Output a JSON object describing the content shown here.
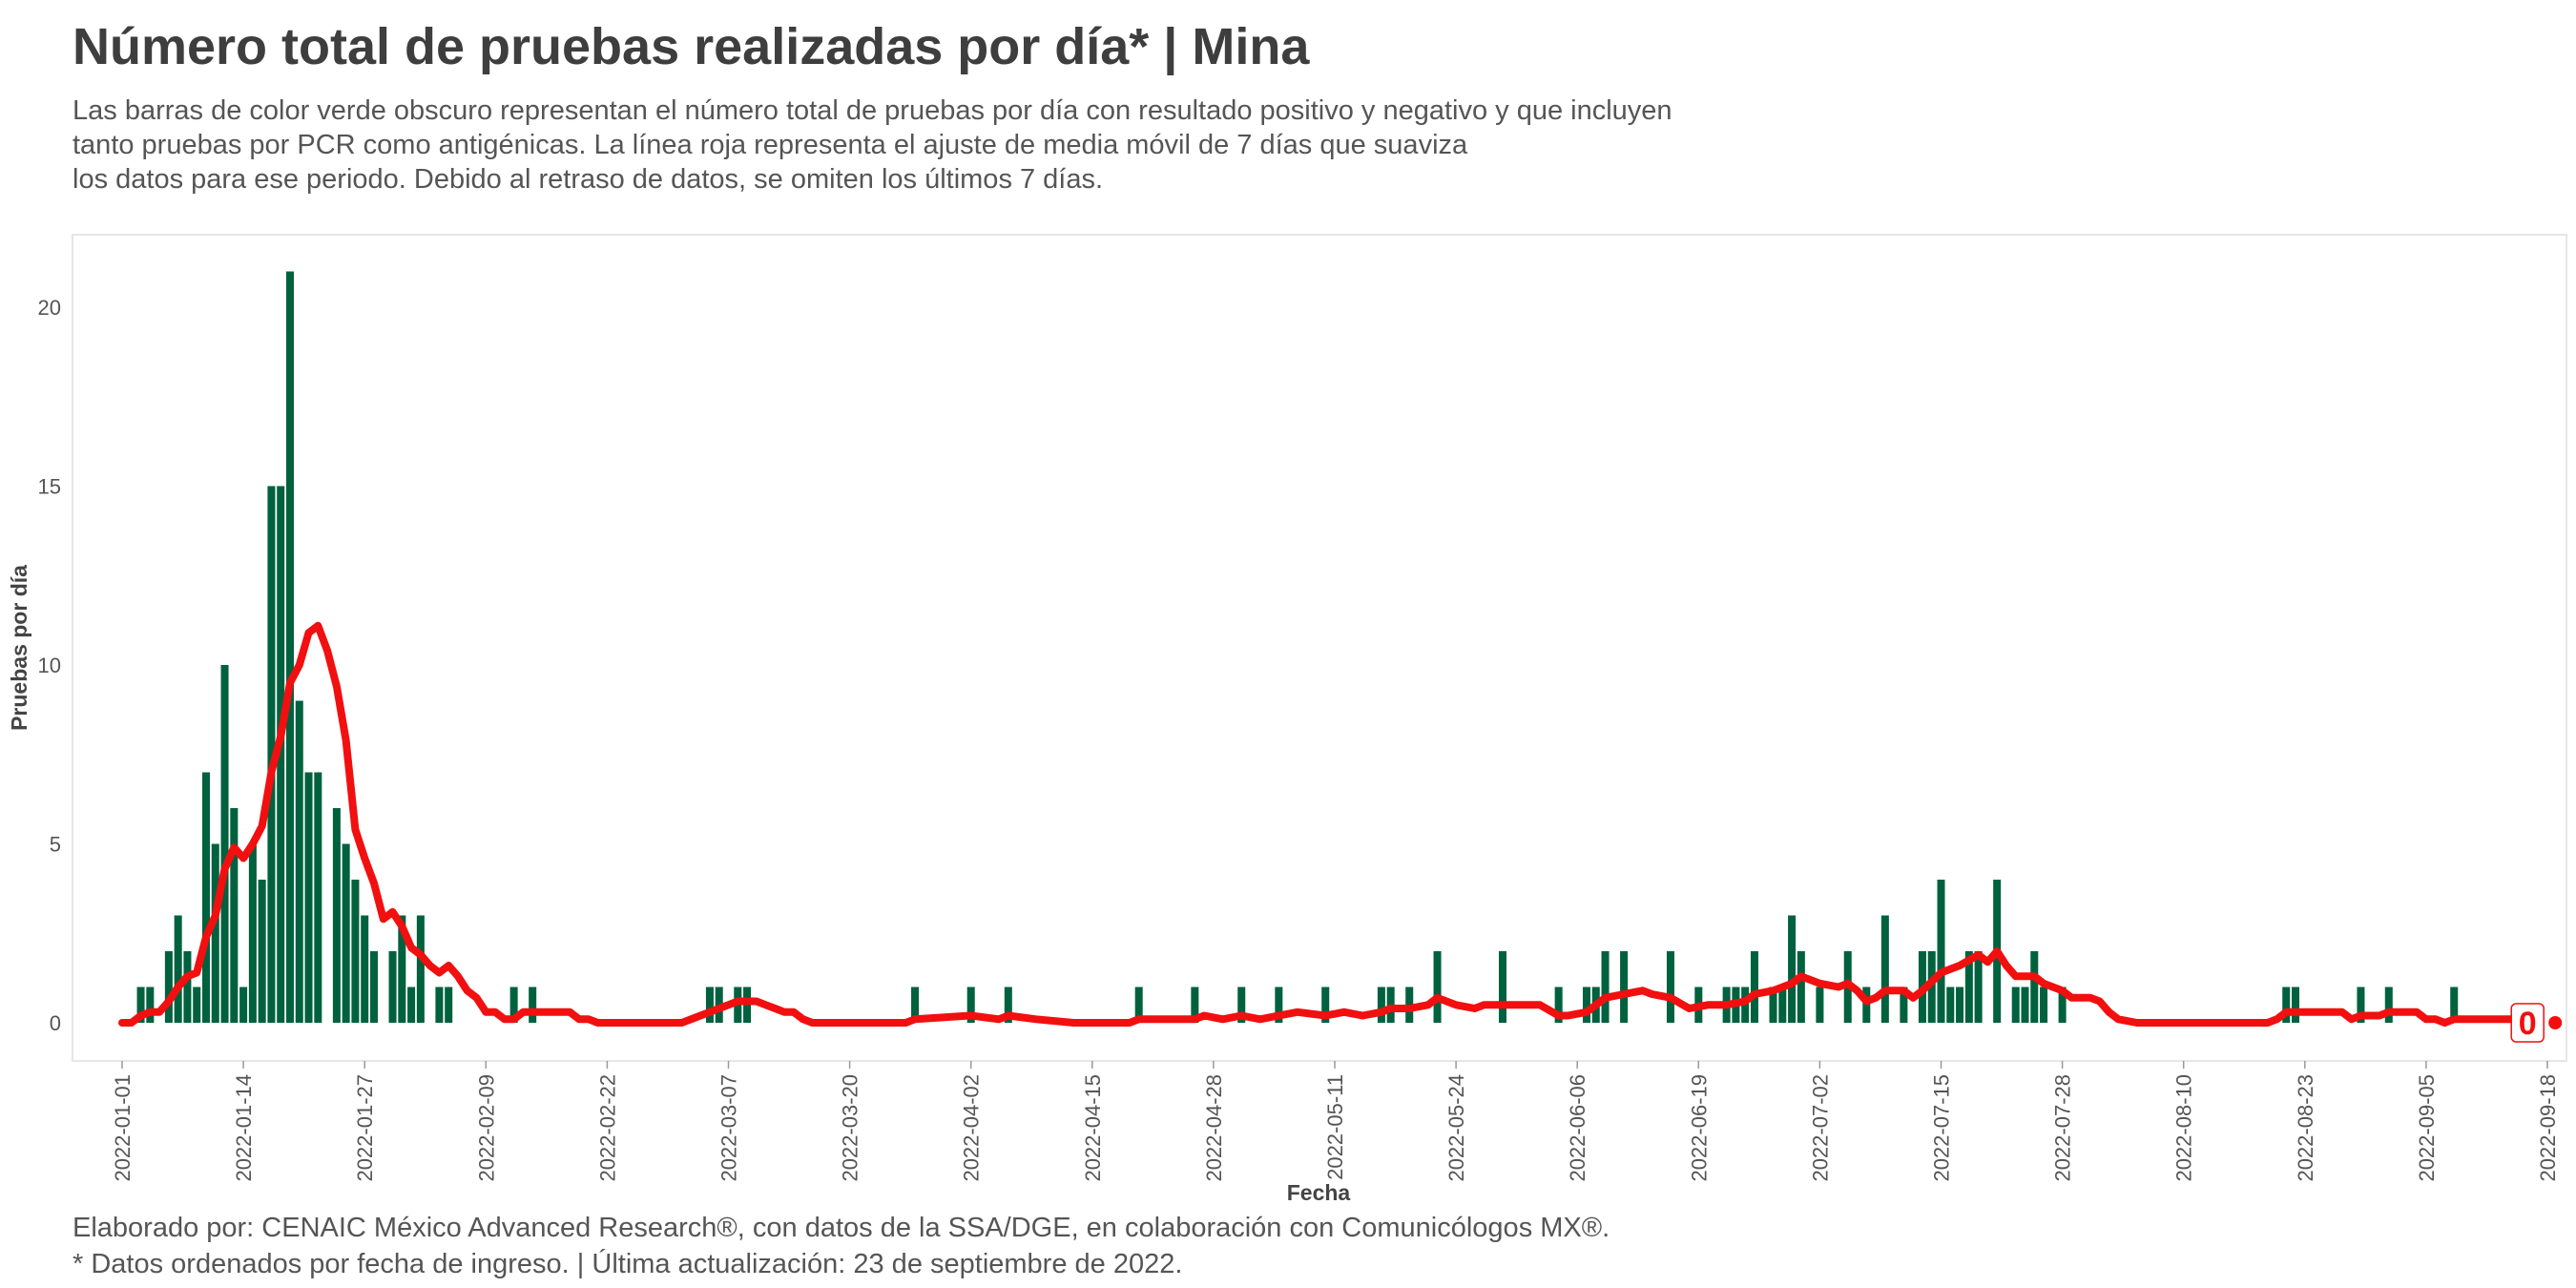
{
  "header": {
    "title": "Número total de pruebas realizadas por día* | Mina",
    "subtitle_lines": [
      "Las barras de color verde obscuro representan el número total de pruebas por día con resultado positivo y negativo y que incluyen",
      "tanto pruebas por PCR como antigénicas. La línea roja representa el ajuste de media móvil de 7 días que suaviza",
      "los datos para ese periodo. Debido al retraso de datos, se omiten los últimos 7 días."
    ]
  },
  "footer": {
    "lines": [
      "Elaborado por: CENAIC México Advanced Research®, con datos de la SSA/DGE, en colaboración con Comunicólogos MX®.",
      "* Datos ordenados por fecha de ingreso. | Última actualización: 23 de septiembre de 2022."
    ]
  },
  "chart_data": {
    "type": "bar",
    "xlabel": "Fecha",
    "ylabel": "Pruebas por día",
    "ylim": [
      0,
      22
    ],
    "yticks": [
      0,
      5,
      10,
      15,
      20
    ],
    "x_start": "2022-01-01",
    "x_end": "2022-09-18",
    "xticks": [
      "2022-01-01",
      "2022-01-14",
      "2022-01-27",
      "2022-02-09",
      "2022-02-22",
      "2022-03-07",
      "2022-03-20",
      "2022-04-02",
      "2022-04-15",
      "2022-04-28",
      "2022-05-11",
      "2022-05-24",
      "2022-06-06",
      "2022-06-19",
      "2022-07-02",
      "2022-07-15",
      "2022-07-28",
      "2022-08-10",
      "2022-08-23",
      "2022-09-05",
      "2022-09-18"
    ],
    "bar_color": "#00613f",
    "line_color": "#f20f0f",
    "series": [
      {
        "name": "Pruebas por día",
        "points": [
          [
            "2022-01-03",
            1
          ],
          [
            "2022-01-04",
            1
          ],
          [
            "2022-01-06",
            2
          ],
          [
            "2022-01-07",
            3
          ],
          [
            "2022-01-08",
            2
          ],
          [
            "2022-01-09",
            1
          ],
          [
            "2022-01-10",
            7
          ],
          [
            "2022-01-11",
            5
          ],
          [
            "2022-01-12",
            10
          ],
          [
            "2022-01-13",
            6
          ],
          [
            "2022-01-14",
            1
          ],
          [
            "2022-01-15",
            5
          ],
          [
            "2022-01-16",
            4
          ],
          [
            "2022-01-17",
            15
          ],
          [
            "2022-01-18",
            15
          ],
          [
            "2022-01-19",
            21
          ],
          [
            "2022-01-20",
            9
          ],
          [
            "2022-01-21",
            7
          ],
          [
            "2022-01-22",
            7
          ],
          [
            "2022-01-24",
            6
          ],
          [
            "2022-01-25",
            5
          ],
          [
            "2022-01-26",
            4
          ],
          [
            "2022-01-27",
            3
          ],
          [
            "2022-01-28",
            2
          ],
          [
            "2022-01-30",
            2
          ],
          [
            "2022-01-31",
            3
          ],
          [
            "2022-02-01",
            1
          ],
          [
            "2022-02-02",
            3
          ],
          [
            "2022-02-04",
            1
          ],
          [
            "2022-02-05",
            1
          ],
          [
            "2022-02-12",
            1
          ],
          [
            "2022-02-14",
            1
          ],
          [
            "2022-03-05",
            1
          ],
          [
            "2022-03-06",
            1
          ],
          [
            "2022-03-08",
            1
          ],
          [
            "2022-03-09",
            1
          ],
          [
            "2022-03-27",
            1
          ],
          [
            "2022-04-02",
            1
          ],
          [
            "2022-04-06",
            1
          ],
          [
            "2022-04-20",
            1
          ],
          [
            "2022-04-26",
            1
          ],
          [
            "2022-05-01",
            1
          ],
          [
            "2022-05-05",
            1
          ],
          [
            "2022-05-10",
            1
          ],
          [
            "2022-05-16",
            1
          ],
          [
            "2022-05-17",
            1
          ],
          [
            "2022-05-19",
            1
          ],
          [
            "2022-05-22",
            2
          ],
          [
            "2022-05-29",
            2
          ],
          [
            "2022-06-04",
            1
          ],
          [
            "2022-06-07",
            1
          ],
          [
            "2022-06-08",
            1
          ],
          [
            "2022-06-09",
            2
          ],
          [
            "2022-06-11",
            2
          ],
          [
            "2022-06-16",
            2
          ],
          [
            "2022-06-19",
            1
          ],
          [
            "2022-06-22",
            1
          ],
          [
            "2022-06-23",
            1
          ],
          [
            "2022-06-24",
            1
          ],
          [
            "2022-06-25",
            2
          ],
          [
            "2022-06-27",
            1
          ],
          [
            "2022-06-28",
            1
          ],
          [
            "2022-06-29",
            3
          ],
          [
            "2022-06-30",
            2
          ],
          [
            "2022-07-02",
            1
          ],
          [
            "2022-07-05",
            2
          ],
          [
            "2022-07-07",
            1
          ],
          [
            "2022-07-09",
            3
          ],
          [
            "2022-07-11",
            1
          ],
          [
            "2022-07-13",
            2
          ],
          [
            "2022-07-14",
            2
          ],
          [
            "2022-07-15",
            4
          ],
          [
            "2022-07-16",
            1
          ],
          [
            "2022-07-17",
            1
          ],
          [
            "2022-07-18",
            2
          ],
          [
            "2022-07-19",
            2
          ],
          [
            "2022-07-21",
            4
          ],
          [
            "2022-07-23",
            1
          ],
          [
            "2022-07-24",
            1
          ],
          [
            "2022-07-25",
            2
          ],
          [
            "2022-07-26",
            1
          ],
          [
            "2022-07-28",
            1
          ],
          [
            "2022-08-21",
            1
          ],
          [
            "2022-08-22",
            1
          ],
          [
            "2022-08-29",
            1
          ],
          [
            "2022-09-01",
            1
          ],
          [
            "2022-09-08",
            1
          ]
        ]
      },
      {
        "name": "Media móvil de 7 días",
        "points": [
          [
            "2022-01-01",
            0
          ],
          [
            "2022-01-02",
            0
          ],
          [
            "2022-01-03",
            0.2
          ],
          [
            "2022-01-04",
            0.3
          ],
          [
            "2022-01-05",
            0.3
          ],
          [
            "2022-01-06",
            0.6
          ],
          [
            "2022-01-07",
            1.0
          ],
          [
            "2022-01-08",
            1.3
          ],
          [
            "2022-01-09",
            1.4
          ],
          [
            "2022-01-10",
            2.4
          ],
          [
            "2022-01-11",
            3.0
          ],
          [
            "2022-01-12",
            4.3
          ],
          [
            "2022-01-13",
            4.9
          ],
          [
            "2022-01-14",
            4.6
          ],
          [
            "2022-01-15",
            5.0
          ],
          [
            "2022-01-16",
            5.5
          ],
          [
            "2022-01-17",
            7.0
          ],
          [
            "2022-01-18",
            8.0
          ],
          [
            "2022-01-19",
            9.5
          ],
          [
            "2022-01-20",
            10.0
          ],
          [
            "2022-01-21",
            10.9
          ],
          [
            "2022-01-22",
            11.1
          ],
          [
            "2022-01-23",
            10.4
          ],
          [
            "2022-01-24",
            9.4
          ],
          [
            "2022-01-25",
            7.9
          ],
          [
            "2022-01-26",
            5.4
          ],
          [
            "2022-01-27",
            4.6
          ],
          [
            "2022-01-28",
            3.9
          ],
          [
            "2022-01-29",
            2.9
          ],
          [
            "2022-01-30",
            3.1
          ],
          [
            "2022-01-31",
            2.7
          ],
          [
            "2022-02-01",
            2.1
          ],
          [
            "2022-02-02",
            1.9
          ],
          [
            "2022-02-03",
            1.6
          ],
          [
            "2022-02-04",
            1.4
          ],
          [
            "2022-02-05",
            1.6
          ],
          [
            "2022-02-06",
            1.3
          ],
          [
            "2022-02-07",
            0.9
          ],
          [
            "2022-02-08",
            0.7
          ],
          [
            "2022-02-09",
            0.3
          ],
          [
            "2022-02-10",
            0.3
          ],
          [
            "2022-02-11",
            0.1
          ],
          [
            "2022-02-12",
            0.1
          ],
          [
            "2022-02-13",
            0.3
          ],
          [
            "2022-02-14",
            0.3
          ],
          [
            "2022-02-15",
            0.3
          ],
          [
            "2022-02-16",
            0.3
          ],
          [
            "2022-02-17",
            0.3
          ],
          [
            "2022-02-18",
            0.3
          ],
          [
            "2022-02-19",
            0.1
          ],
          [
            "2022-02-20",
            0.1
          ],
          [
            "2022-02-21",
            0
          ],
          [
            "2022-03-02",
            0
          ],
          [
            "2022-03-03",
            0.1
          ],
          [
            "2022-03-04",
            0.2
          ],
          [
            "2022-03-05",
            0.3
          ],
          [
            "2022-03-06",
            0.4
          ],
          [
            "2022-03-07",
            0.5
          ],
          [
            "2022-03-08",
            0.6
          ],
          [
            "2022-03-09",
            0.6
          ],
          [
            "2022-03-10",
            0.6
          ],
          [
            "2022-03-11",
            0.5
          ],
          [
            "2022-03-12",
            0.4
          ],
          [
            "2022-03-13",
            0.3
          ],
          [
            "2022-03-14",
            0.3
          ],
          [
            "2022-03-15",
            0.1
          ],
          [
            "2022-03-16",
            0
          ],
          [
            "2022-03-26",
            0
          ],
          [
            "2022-03-27",
            0.1
          ],
          [
            "2022-04-02",
            0.2
          ],
          [
            "2022-04-05",
            0.1
          ],
          [
            "2022-04-06",
            0.2
          ],
          [
            "2022-04-09",
            0.1
          ],
          [
            "2022-04-13",
            0
          ],
          [
            "2022-04-19",
            0
          ],
          [
            "2022-04-20",
            0.1
          ],
          [
            "2022-04-26",
            0.1
          ],
          [
            "2022-04-27",
            0.2
          ],
          [
            "2022-04-29",
            0.1
          ],
          [
            "2022-05-01",
            0.2
          ],
          [
            "2022-05-03",
            0.1
          ],
          [
            "2022-05-05",
            0.2
          ],
          [
            "2022-05-07",
            0.3
          ],
          [
            "2022-05-10",
            0.2
          ],
          [
            "2022-05-12",
            0.3
          ],
          [
            "2022-05-14",
            0.2
          ],
          [
            "2022-05-16",
            0.3
          ],
          [
            "2022-05-17",
            0.4
          ],
          [
            "2022-05-19",
            0.4
          ],
          [
            "2022-05-21",
            0.5
          ],
          [
            "2022-05-22",
            0.7
          ],
          [
            "2022-05-24",
            0.5
          ],
          [
            "2022-05-26",
            0.4
          ],
          [
            "2022-05-27",
            0.5
          ],
          [
            "2022-06-02",
            0.5
          ],
          [
            "2022-06-04",
            0.2
          ],
          [
            "2022-06-05",
            0.2
          ],
          [
            "2022-06-07",
            0.3
          ],
          [
            "2022-06-08",
            0.5
          ],
          [
            "2022-06-09",
            0.7
          ],
          [
            "2022-06-11",
            0.8
          ],
          [
            "2022-06-13",
            0.9
          ],
          [
            "2022-06-14",
            0.8
          ],
          [
            "2022-06-16",
            0.7
          ],
          [
            "2022-06-18",
            0.4
          ],
          [
            "2022-06-20",
            0.5
          ],
          [
            "2022-06-22",
            0.5
          ],
          [
            "2022-06-24",
            0.6
          ],
          [
            "2022-06-25",
            0.8
          ],
          [
            "2022-06-27",
            0.9
          ],
          [
            "2022-06-29",
            1.1
          ],
          [
            "2022-06-30",
            1.3
          ],
          [
            "2022-07-02",
            1.1
          ],
          [
            "2022-07-04",
            1.0
          ],
          [
            "2022-07-05",
            1.1
          ],
          [
            "2022-07-06",
            0.9
          ],
          [
            "2022-07-07",
            0.6
          ],
          [
            "2022-07-08",
            0.7
          ],
          [
            "2022-07-09",
            0.9
          ],
          [
            "2022-07-11",
            0.9
          ],
          [
            "2022-07-12",
            0.7
          ],
          [
            "2022-07-13",
            0.9
          ],
          [
            "2022-07-15",
            1.4
          ],
          [
            "2022-07-17",
            1.6
          ],
          [
            "2022-07-19",
            1.9
          ],
          [
            "2022-07-20",
            1.7
          ],
          [
            "2022-07-21",
            2.0
          ],
          [
            "2022-07-22",
            1.6
          ],
          [
            "2022-07-23",
            1.3
          ],
          [
            "2022-07-25",
            1.3
          ],
          [
            "2022-07-26",
            1.1
          ],
          [
            "2022-07-28",
            0.9
          ],
          [
            "2022-07-29",
            0.7
          ],
          [
            "2022-07-30",
            0.7
          ],
          [
            "2022-07-31",
            0.7
          ],
          [
            "2022-08-01",
            0.6
          ],
          [
            "2022-08-02",
            0.3
          ],
          [
            "2022-08-03",
            0.1
          ],
          [
            "2022-08-05",
            0
          ],
          [
            "2022-08-19",
            0
          ],
          [
            "2022-08-20",
            0.1
          ],
          [
            "2022-08-21",
            0.3
          ],
          [
            "2022-08-27",
            0.3
          ],
          [
            "2022-08-28",
            0.1
          ],
          [
            "2022-08-29",
            0.2
          ],
          [
            "2022-08-31",
            0.2
          ],
          [
            "2022-09-01",
            0.3
          ],
          [
            "2022-09-04",
            0.3
          ],
          [
            "2022-09-05",
            0.1
          ],
          [
            "2022-09-06",
            0.1
          ],
          [
            "2022-09-07",
            0
          ],
          [
            "2022-09-08",
            0.1
          ],
          [
            "2022-09-16",
            0.1
          ],
          [
            "2022-09-17",
            0
          ]
        ]
      }
    ],
    "end_label": "0"
  }
}
